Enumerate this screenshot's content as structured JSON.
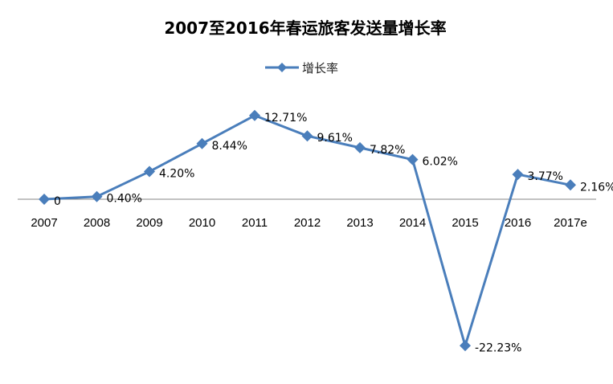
{
  "chart_data": {
    "type": "line",
    "title": "2007至2016年春运旅客发送量增长率",
    "legend": {
      "position": "top-center",
      "entries": [
        "增长率"
      ]
    },
    "categories": [
      "2007",
      "2008",
      "2009",
      "2010",
      "2011",
      "2012",
      "2013",
      "2014",
      "2015",
      "2016",
      "2017e"
    ],
    "series": [
      {
        "name": "增长率",
        "color": "#4A7EBB",
        "marker": "diamond",
        "values": [
          0,
          0.4,
          4.2,
          8.44,
          12.71,
          9.61,
          7.82,
          6.02,
          -22.23,
          3.77,
          2.16
        ],
        "labels": [
          "0",
          "0.40%",
          "4.20%",
          "8.44%",
          "12.71%",
          "9.61%",
          "7.82%",
          "6.02%",
          "-22.23%",
          "3.77%",
          "2.16%"
        ]
      }
    ],
    "ylim": [
      -22.23,
      12.71
    ],
    "xlabel": "",
    "ylabel": "",
    "y_axis_visible": false,
    "grid": false
  }
}
